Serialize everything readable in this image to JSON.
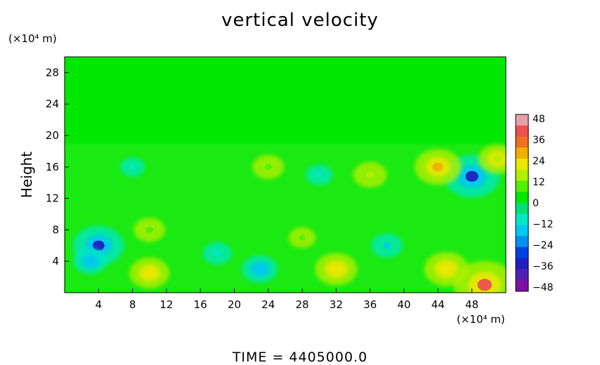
{
  "chart_data": {
    "type": "heatmap",
    "title": "vertical velocity",
    "ylabel": "Height",
    "xlabel": "",
    "y_unit": "(×10⁴ m)",
    "x_unit": "(×10⁴ m)",
    "footer": "TIME = 4405000.0",
    "xlim": [
      0,
      52
    ],
    "ylim": [
      0,
      30
    ],
    "x_ticks": [
      "4",
      "8",
      "12",
      "16",
      "20",
      "24",
      "28",
      "32",
      "36",
      "40",
      "44",
      "48"
    ],
    "y_ticks": [
      "4",
      "8",
      "12",
      "16",
      "20",
      "24",
      "28"
    ],
    "colorbar": {
      "min": -48,
      "max": 48,
      "ticks": [
        "48",
        "36",
        "24",
        "12",
        "0",
        "−12",
        "−24",
        "−36",
        "−48"
      ],
      "colors": [
        "#e8a0a8",
        "#f05050",
        "#f07020",
        "#f0b000",
        "#e8e800",
        "#b0f000",
        "#50f000",
        "#00e800",
        "#00e070",
        "#00e8c8",
        "#00c8f0",
        "#0090f0",
        "#0040e0",
        "#2020c0",
        "#5020b0",
        "#8010a0"
      ]
    },
    "features": [
      {
        "x": 4,
        "y": 6,
        "value": -30
      },
      {
        "x": 3,
        "y": 4,
        "value": -14
      },
      {
        "x": 10,
        "y": 2.5,
        "value": 20
      },
      {
        "x": 10,
        "y": 8,
        "value": 12
      },
      {
        "x": 23,
        "y": 3,
        "value": -16
      },
      {
        "x": 32,
        "y": 3,
        "value": 22
      },
      {
        "x": 28,
        "y": 7,
        "value": 8
      },
      {
        "x": 18,
        "y": 5,
        "value": -10
      },
      {
        "x": 38,
        "y": 6,
        "value": -12
      },
      {
        "x": 45,
        "y": 3,
        "value": 24
      },
      {
        "x": 49.5,
        "y": 1,
        "value": 40
      },
      {
        "x": 48,
        "y": 14.8,
        "value": -34
      },
      {
        "x": 44,
        "y": 16,
        "value": 26
      },
      {
        "x": 51,
        "y": 17,
        "value": 18
      },
      {
        "x": 36,
        "y": 15,
        "value": 14
      },
      {
        "x": 24,
        "y": 16,
        "value": 12
      },
      {
        "x": 8,
        "y": 16,
        "value": -6
      },
      {
        "x": 30,
        "y": 15,
        "value": -8
      }
    ]
  }
}
